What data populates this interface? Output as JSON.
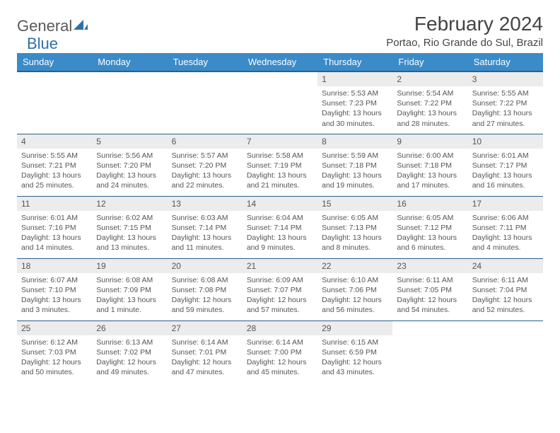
{
  "logo": {
    "text1": "General",
    "text2": "Blue"
  },
  "title": "February 2024",
  "location": "Portao, Rio Grande do Sul, Brazil",
  "header_bg": "#3b8bc9",
  "header_border": "#2d5f8a",
  "daynum_bg": "#ececec",
  "weekdays": [
    "Sunday",
    "Monday",
    "Tuesday",
    "Wednesday",
    "Thursday",
    "Friday",
    "Saturday"
  ],
  "weeks": [
    [
      null,
      null,
      null,
      null,
      {
        "d": "1",
        "sr": "5:53 AM",
        "ss": "7:23 PM",
        "dl": "13 hours and 30 minutes."
      },
      {
        "d": "2",
        "sr": "5:54 AM",
        "ss": "7:22 PM",
        "dl": "13 hours and 28 minutes."
      },
      {
        "d": "3",
        "sr": "5:55 AM",
        "ss": "7:22 PM",
        "dl": "13 hours and 27 minutes."
      }
    ],
    [
      {
        "d": "4",
        "sr": "5:55 AM",
        "ss": "7:21 PM",
        "dl": "13 hours and 25 minutes."
      },
      {
        "d": "5",
        "sr": "5:56 AM",
        "ss": "7:20 PM",
        "dl": "13 hours and 24 minutes."
      },
      {
        "d": "6",
        "sr": "5:57 AM",
        "ss": "7:20 PM",
        "dl": "13 hours and 22 minutes."
      },
      {
        "d": "7",
        "sr": "5:58 AM",
        "ss": "7:19 PM",
        "dl": "13 hours and 21 minutes."
      },
      {
        "d": "8",
        "sr": "5:59 AM",
        "ss": "7:18 PM",
        "dl": "13 hours and 19 minutes."
      },
      {
        "d": "9",
        "sr": "6:00 AM",
        "ss": "7:18 PM",
        "dl": "13 hours and 17 minutes."
      },
      {
        "d": "10",
        "sr": "6:01 AM",
        "ss": "7:17 PM",
        "dl": "13 hours and 16 minutes."
      }
    ],
    [
      {
        "d": "11",
        "sr": "6:01 AM",
        "ss": "7:16 PM",
        "dl": "13 hours and 14 minutes."
      },
      {
        "d": "12",
        "sr": "6:02 AM",
        "ss": "7:15 PM",
        "dl": "13 hours and 13 minutes."
      },
      {
        "d": "13",
        "sr": "6:03 AM",
        "ss": "7:14 PM",
        "dl": "13 hours and 11 minutes."
      },
      {
        "d": "14",
        "sr": "6:04 AM",
        "ss": "7:14 PM",
        "dl": "13 hours and 9 minutes."
      },
      {
        "d": "15",
        "sr": "6:05 AM",
        "ss": "7:13 PM",
        "dl": "13 hours and 8 minutes."
      },
      {
        "d": "16",
        "sr": "6:05 AM",
        "ss": "7:12 PM",
        "dl": "13 hours and 6 minutes."
      },
      {
        "d": "17",
        "sr": "6:06 AM",
        "ss": "7:11 PM",
        "dl": "13 hours and 4 minutes."
      }
    ],
    [
      {
        "d": "18",
        "sr": "6:07 AM",
        "ss": "7:10 PM",
        "dl": "13 hours and 3 minutes."
      },
      {
        "d": "19",
        "sr": "6:08 AM",
        "ss": "7:09 PM",
        "dl": "13 hours and 1 minute."
      },
      {
        "d": "20",
        "sr": "6:08 AM",
        "ss": "7:08 PM",
        "dl": "12 hours and 59 minutes."
      },
      {
        "d": "21",
        "sr": "6:09 AM",
        "ss": "7:07 PM",
        "dl": "12 hours and 57 minutes."
      },
      {
        "d": "22",
        "sr": "6:10 AM",
        "ss": "7:06 PM",
        "dl": "12 hours and 56 minutes."
      },
      {
        "d": "23",
        "sr": "6:11 AM",
        "ss": "7:05 PM",
        "dl": "12 hours and 54 minutes."
      },
      {
        "d": "24",
        "sr": "6:11 AM",
        "ss": "7:04 PM",
        "dl": "12 hours and 52 minutes."
      }
    ],
    [
      {
        "d": "25",
        "sr": "6:12 AM",
        "ss": "7:03 PM",
        "dl": "12 hours and 50 minutes."
      },
      {
        "d": "26",
        "sr": "6:13 AM",
        "ss": "7:02 PM",
        "dl": "12 hours and 49 minutes."
      },
      {
        "d": "27",
        "sr": "6:14 AM",
        "ss": "7:01 PM",
        "dl": "12 hours and 47 minutes."
      },
      {
        "d": "28",
        "sr": "6:14 AM",
        "ss": "7:00 PM",
        "dl": "12 hours and 45 minutes."
      },
      {
        "d": "29",
        "sr": "6:15 AM",
        "ss": "6:59 PM",
        "dl": "12 hours and 43 minutes."
      },
      null,
      null
    ]
  ],
  "labels": {
    "sunrise": "Sunrise:",
    "sunset": "Sunset:",
    "daylight": "Daylight:"
  }
}
